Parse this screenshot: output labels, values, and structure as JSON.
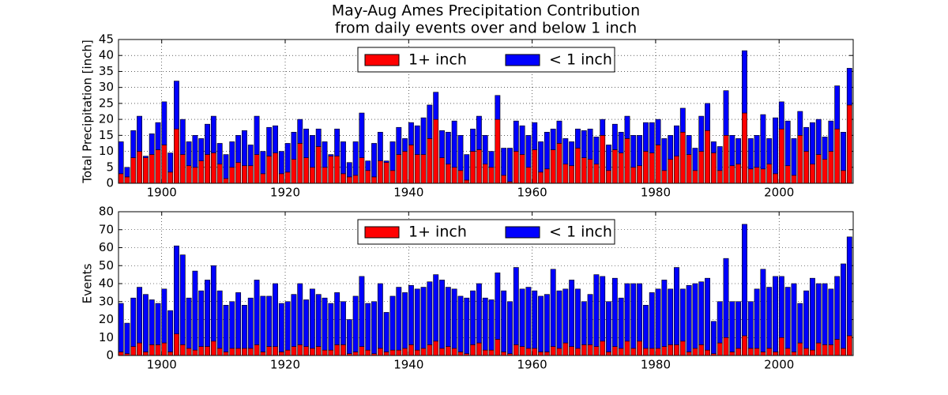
{
  "chart_data": [
    {
      "type": "bar",
      "stacked": true,
      "title": "May-Aug Ames Precipitation Contribution",
      "subtitle": "from daily events over and below 1 inch",
      "y_label": "Total Precipitation [inch]",
      "x": [
        1893,
        1894,
        1895,
        1896,
        1897,
        1898,
        1899,
        1900,
        1901,
        1902,
        1903,
        1904,
        1905,
        1906,
        1907,
        1908,
        1909,
        1910,
        1911,
        1912,
        1913,
        1914,
        1915,
        1916,
        1917,
        1918,
        1919,
        1920,
        1921,
        1922,
        1923,
        1924,
        1925,
        1926,
        1927,
        1928,
        1929,
        1930,
        1931,
        1932,
        1933,
        1934,
        1935,
        1936,
        1937,
        1938,
        1939,
        1940,
        1941,
        1942,
        1943,
        1944,
        1945,
        1946,
        1947,
        1948,
        1949,
        1950,
        1951,
        1952,
        1953,
        1954,
        1955,
        1956,
        1957,
        1958,
        1959,
        1960,
        1961,
        1962,
        1963,
        1964,
        1965,
        1966,
        1967,
        1968,
        1969,
        1970,
        1971,
        1972,
        1973,
        1974,
        1975,
        1976,
        1977,
        1978,
        1979,
        1980,
        1981,
        1982,
        1983,
        1984,
        1985,
        1986,
        1987,
        1988,
        1989,
        1990,
        1991,
        1992,
        1993,
        1994,
        1995,
        1996,
        1997,
        1998,
        1999,
        2000,
        2001,
        2002,
        2003,
        2004,
        2005,
        2006,
        2007,
        2008,
        2009,
        2010,
        2011
      ],
      "series": [
        {
          "name": "1+ inch",
          "color": "#ff0000",
          "values": [
            3,
            2,
            8,
            10,
            8,
            9,
            10.5,
            12,
            3.5,
            17,
            9,
            5.5,
            5,
            7,
            9,
            9.5,
            6,
            1.5,
            5,
            6.5,
            5.5,
            5.5,
            9,
            3,
            8.5,
            9.5,
            3,
            3.5,
            7.5,
            12.5,
            8,
            5,
            11.5,
            5,
            8.5,
            8.5,
            3,
            2,
            2.5,
            8,
            4,
            2,
            7,
            6.5,
            4,
            9,
            10,
            12,
            9,
            9,
            14,
            20,
            8,
            6,
            5,
            4,
            1,
            10,
            10.5,
            6,
            5,
            20,
            2.5,
            0.5,
            10,
            9,
            5,
            10.5,
            3.5,
            4.5,
            10.5,
            12.5,
            6,
            5.5,
            11,
            8,
            7.5,
            6,
            15,
            4,
            10.5,
            9.5,
            14,
            5,
            5.5,
            10,
            9.5,
            12,
            4,
            7.5,
            8.5,
            16,
            9,
            4,
            10,
            16.5,
            9.5,
            4,
            15,
            5.5,
            6,
            22,
            4.5,
            5,
            4.5,
            6,
            3,
            17,
            5.5,
            2.5,
            15,
            10,
            6,
            9,
            7.5,
            10,
            17,
            4,
            24.5
          ]
        },
        {
          "name": "< 1 inch",
          "color": "#0000ff",
          "values": [
            10,
            3,
            8.5,
            11,
            0.5,
            6.5,
            8.5,
            13.5,
            6,
            15,
            11,
            7.5,
            10,
            7,
            9.5,
            11.5,
            6.5,
            7.5,
            8,
            8.5,
            11,
            6.5,
            12,
            7,
            9,
            8.5,
            7,
            9,
            8.5,
            7.5,
            9,
            10,
            5.5,
            8,
            0.5,
            8.5,
            10,
            4.5,
            10.5,
            14,
            3,
            10.5,
            9,
            0.5,
            9,
            8.5,
            4,
            7,
            9,
            11.5,
            10.5,
            8.5,
            8.5,
            10,
            14.5,
            11,
            8,
            7,
            10.5,
            9,
            5,
            7.5,
            8.5,
            10.5,
            9.5,
            9,
            10,
            8.5,
            9.5,
            11.5,
            6.5,
            7,
            8,
            7.5,
            6,
            8.5,
            9.5,
            8.5,
            5,
            8,
            8,
            6.5,
            7,
            10,
            9.5,
            9,
            9.5,
            8,
            10,
            7.5,
            9.5,
            7.5,
            6,
            7,
            11,
            8.5,
            3.5,
            7.5,
            14,
            9.5,
            8,
            19.5,
            9.5,
            10,
            17,
            8,
            17.5,
            8.5,
            14,
            11.5,
            7.5,
            7.5,
            13,
            11,
            7,
            9.5,
            13.5,
            12,
            11.5
          ]
        }
      ],
      "xlim": [
        1893,
        2012
      ],
      "xticks": [
        1900,
        1920,
        1940,
        1960,
        1980,
        2000
      ],
      "ylim": [
        0,
        45
      ],
      "yticks": [
        0,
        5,
        10,
        15,
        20,
        25,
        30,
        35,
        40,
        45
      ],
      "grid": true,
      "legend": "upper center"
    },
    {
      "type": "bar",
      "stacked": true,
      "y_label": "Events",
      "x": [
        1893,
        1894,
        1895,
        1896,
        1897,
        1898,
        1899,
        1900,
        1901,
        1902,
        1903,
        1904,
        1905,
        1906,
        1907,
        1908,
        1909,
        1910,
        1911,
        1912,
        1913,
        1914,
        1915,
        1916,
        1917,
        1918,
        1919,
        1920,
        1921,
        1922,
        1923,
        1924,
        1925,
        1926,
        1927,
        1928,
        1929,
        1930,
        1931,
        1932,
        1933,
        1934,
        1935,
        1936,
        1937,
        1938,
        1939,
        1940,
        1941,
        1942,
        1943,
        1944,
        1945,
        1946,
        1947,
        1948,
        1949,
        1950,
        1951,
        1952,
        1953,
        1954,
        1955,
        1956,
        1957,
        1958,
        1959,
        1960,
        1961,
        1962,
        1963,
        1964,
        1965,
        1966,
        1967,
        1968,
        1969,
        1970,
        1971,
        1972,
        1973,
        1974,
        1975,
        1976,
        1977,
        1978,
        1979,
        1980,
        1981,
        1982,
        1983,
        1984,
        1985,
        1986,
        1987,
        1988,
        1989,
        1990,
        1991,
        1992,
        1993,
        1994,
        1995,
        1996,
        1997,
        1998,
        1999,
        2000,
        2001,
        2002,
        2003,
        2004,
        2005,
        2006,
        2007,
        2008,
        2009,
        2010,
        2011
      ],
      "series": [
        {
          "name": "1+ inch",
          "color": "#ff0000",
          "values": [
            2,
            1,
            5,
            7,
            2,
            6,
            6,
            7,
            2,
            12,
            6,
            4,
            3,
            5,
            5,
            8,
            4,
            2,
            4,
            4,
            4,
            4,
            6,
            2,
            5,
            5,
            2,
            3,
            5,
            6,
            5,
            4,
            5,
            3,
            3,
            6,
            6,
            1,
            2,
            5,
            3,
            1,
            4,
            2,
            3,
            3,
            4,
            6,
            3,
            4,
            6,
            8,
            4,
            5,
            4,
            2,
            1,
            6,
            7,
            3,
            3,
            9,
            2,
            1,
            6,
            5,
            4,
            4,
            2,
            2,
            5,
            4,
            7,
            5,
            4,
            6,
            6,
            5,
            8,
            2,
            5,
            4,
            8,
            4,
            8,
            4,
            4,
            4,
            5,
            6,
            6,
            8,
            2,
            4,
            6,
            3,
            1,
            7,
            10,
            2,
            4,
            11,
            4,
            4,
            2,
            4,
            2,
            10,
            4,
            2,
            7,
            4,
            3,
            7,
            6,
            6,
            9,
            4,
            11
          ]
        },
        {
          "name": "< 1 inch",
          "color": "#0000ff",
          "values": [
            27,
            17,
            27,
            31,
            32,
            25,
            23,
            30,
            23,
            49,
            50,
            28,
            44,
            31,
            37,
            42,
            32,
            26,
            26,
            31,
            24,
            28,
            36,
            31,
            28,
            35,
            27,
            27,
            29,
            34,
            26,
            33,
            29,
            29,
            26,
            29,
            24,
            19,
            31,
            39,
            26,
            29,
            36,
            22,
            30,
            35,
            31,
            33,
            34,
            34,
            35,
            37,
            38,
            33,
            33,
            31,
            31,
            30,
            33,
            29,
            28,
            37,
            34,
            29,
            43,
            32,
            34,
            32,
            31,
            32,
            43,
            32,
            30,
            37,
            33,
            24,
            28,
            40,
            36,
            28,
            38,
            28,
            32,
            36,
            32,
            24,
            31,
            33,
            37,
            31,
            43,
            29,
            37,
            36,
            35,
            40,
            18,
            23,
            44,
            28,
            26,
            62,
            26,
            33,
            46,
            34,
            42,
            34,
            34,
            38,
            22,
            32,
            40,
            33,
            34,
            31,
            35,
            47,
            55
          ]
        }
      ],
      "xlim": [
        1893,
        2012
      ],
      "xticks": [
        1900,
        1920,
        1940,
        1960,
        1980,
        2000
      ],
      "ylim": [
        0,
        80
      ],
      "yticks": [
        0,
        10,
        20,
        30,
        40,
        50,
        60,
        70,
        80
      ],
      "grid": true,
      "legend": "upper center"
    }
  ]
}
